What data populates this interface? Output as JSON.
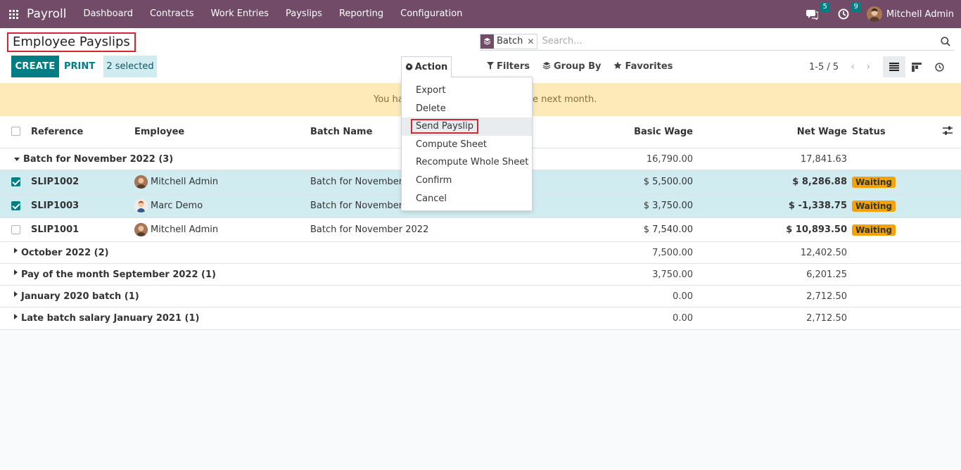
{
  "navbar": {
    "app_name": "Payroll",
    "menu": [
      "Dashboard",
      "Contracts",
      "Work Entries",
      "Payslips",
      "Reporting",
      "Configuration"
    ],
    "chat_badge": "5",
    "activity_badge": "9",
    "user_name": "Mitchell Admin"
  },
  "control": {
    "title": "Employee Payslips",
    "create_label": "CREATE",
    "print_label": "PRINT",
    "selected_label": "2 selected",
    "action_label": "Action",
    "search_facet": "Batch",
    "search_placeholder": "Search...",
    "filters_label": "Filters",
    "groupby_label": "Group By",
    "favorites_label": "Favorites",
    "pager": "1-5 / 5"
  },
  "warning": {
    "left_text": "You ha",
    "right_text": "e next month."
  },
  "action_menu": {
    "items": [
      "Export",
      "Delete",
      "Send Payslip",
      "Compute Sheet",
      "Recompute Whole Sheet",
      "Confirm",
      "Cancel"
    ]
  },
  "table": {
    "headers": {
      "reference": "Reference",
      "employee": "Employee",
      "batch_name": "Batch Name",
      "basic_wage": "Basic Wage",
      "net_wage": "Net Wage",
      "status": "Status"
    },
    "groups": [
      {
        "title": "Batch for November 2022 (3)",
        "basic": "16,790.00",
        "net": "17,841.63"
      },
      {
        "title": "October 2022 (2)",
        "basic": "7,500.00",
        "net": "12,402.50"
      },
      {
        "title": "Pay of the month September 2022 (1)",
        "basic": "3,750.00",
        "net": "6,201.25"
      },
      {
        "title": "January 2020 batch (1)",
        "basic": "0.00",
        "net": "2,712.50"
      },
      {
        "title": "Late batch salary January 2021 (1)",
        "basic": "0.00",
        "net": "2,712.50"
      }
    ],
    "records": [
      {
        "ref": "SLIP1002",
        "employee": "Mitchell Admin",
        "batch": "Batch for November 2",
        "basic": "$ 5,500.00",
        "net": "$ 8,286.88",
        "status": "Waiting",
        "selected": true
      },
      {
        "ref": "SLIP1003",
        "employee": "Marc Demo",
        "batch": "Batch for November 2",
        "basic": "$ 3,750.00",
        "net": "$ -1,338.75",
        "status": "Waiting",
        "selected": true
      },
      {
        "ref": "SLIP1001",
        "employee": "Mitchell Admin",
        "batch": "Batch for November 2022",
        "basic": "$ 7,540.00",
        "net": "$ 10,893.50",
        "status": "Waiting",
        "selected": false
      }
    ]
  },
  "colors": {
    "brand": "#714b67",
    "primary": "#017e84",
    "warning_bg": "#fdeab8",
    "status_waiting": "#f4a300",
    "highlight_box": "#d9232e"
  }
}
